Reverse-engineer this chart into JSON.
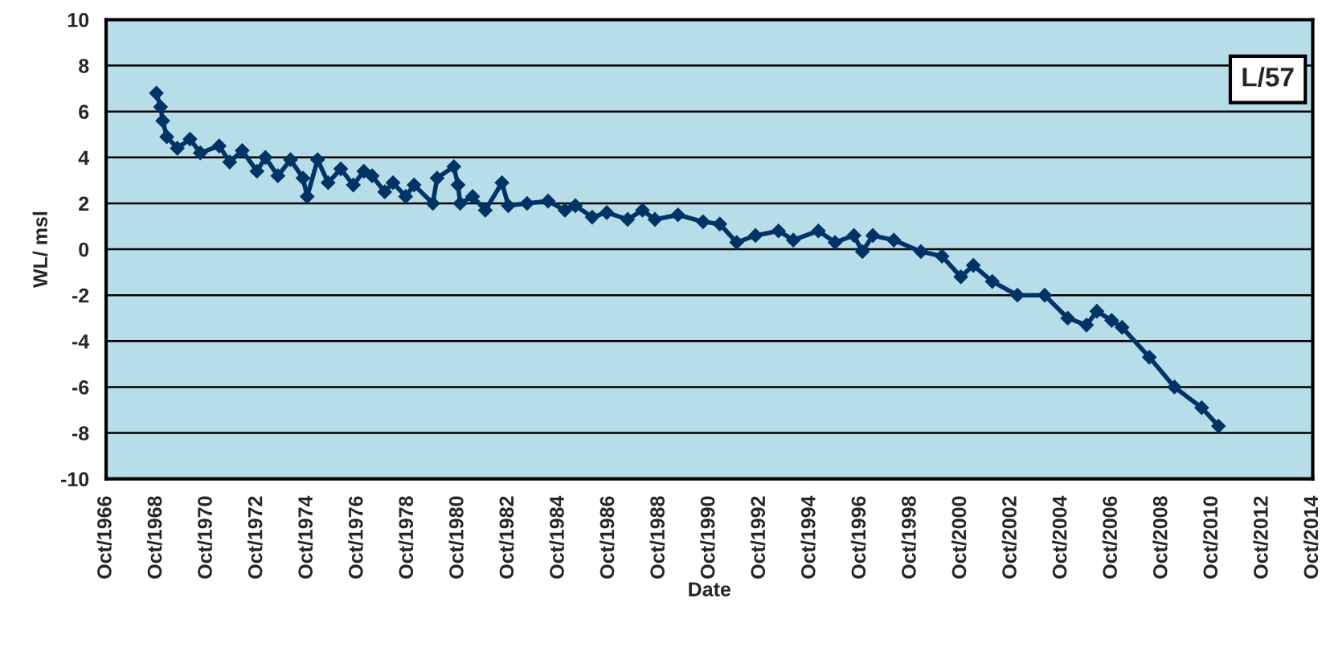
{
  "chart_data": {
    "type": "line",
    "xlabel": "Date",
    "ylabel": "WL/ msl",
    "x": [
      "1968-10",
      "1968-12",
      "1969-01",
      "1969-03",
      "1969-08",
      "1970-02",
      "1970-07",
      "1971-04",
      "1971-09",
      "1972-03",
      "1972-10",
      "1973-02",
      "1973-08",
      "1974-02",
      "1974-08",
      "1974-10",
      "1975-03",
      "1975-08",
      "1976-02",
      "1976-08",
      "1977-01",
      "1977-05",
      "1977-11",
      "1978-03",
      "1978-09",
      "1979-01",
      "1979-10",
      "1979-12",
      "1980-08",
      "1980-10",
      "1980-11",
      "1981-05",
      "1981-11",
      "1982-07",
      "1982-10",
      "1983-07",
      "1984-05",
      "1985-01",
      "1985-06",
      "1986-02",
      "1986-09",
      "1987-07",
      "1988-02",
      "1988-08",
      "1989-07",
      "1990-07",
      "1991-03",
      "1991-11",
      "1992-08",
      "1993-07",
      "1994-02",
      "1995-02",
      "1995-10",
      "1996-07",
      "1996-11",
      "1997-04",
      "1998-02",
      "1999-03",
      "2000-01",
      "2000-10",
      "2001-04",
      "2002-01",
      "2003-01",
      "2004-02",
      "2005-01",
      "2005-10",
      "2006-03",
      "2006-10",
      "2007-03",
      "2008-04",
      "2009-04",
      "2010-05",
      "2011-01"
    ],
    "series": [
      {
        "color": "#003366",
        "values": [
          6.8,
          6.2,
          5.6,
          4.9,
          4.4,
          4.8,
          4.2,
          4.5,
          3.8,
          4.3,
          3.4,
          4.0,
          3.2,
          3.9,
          3.1,
          2.3,
          3.9,
          2.9,
          3.5,
          2.8,
          3.4,
          3.2,
          2.5,
          2.9,
          2.3,
          2.8,
          2.0,
          3.1,
          3.6,
          2.8,
          2.0,
          2.3,
          1.7,
          2.9,
          1.9,
          2.0,
          2.1,
          1.7,
          1.9,
          1.4,
          1.6,
          1.3,
          1.7,
          1.3,
          1.5,
          1.2,
          1.1,
          0.3,
          0.6,
          0.8,
          0.4,
          0.8,
          0.3,
          0.6,
          -0.1,
          0.6,
          0.4,
          -0.1,
          -0.3,
          -1.2,
          -0.7,
          -1.4,
          -2.0,
          -2.0,
          -3.0,
          -3.3,
          -2.7,
          -3.1,
          -3.4,
          -4.7,
          -6.0,
          -6.9,
          -7.7
        ]
      }
    ],
    "xlim": [
      "1966-10",
      "2014-10"
    ],
    "xticks": [
      {
        "value": "1966-10",
        "label": "Oct/1966"
      },
      {
        "value": "1968-10",
        "label": "Oct/1968"
      },
      {
        "value": "1970-10",
        "label": "Oct/1970"
      },
      {
        "value": "1972-10",
        "label": "Oct/1972"
      },
      {
        "value": "1974-10",
        "label": "Oct/1974"
      },
      {
        "value": "1976-10",
        "label": "Oct/1976"
      },
      {
        "value": "1978-10",
        "label": "Oct/1978"
      },
      {
        "value": "1980-10",
        "label": "Oct/1980"
      },
      {
        "value": "1982-10",
        "label": "Oct/1982"
      },
      {
        "value": "1984-10",
        "label": "Oct/1984"
      },
      {
        "value": "1986-10",
        "label": "Oct/1986"
      },
      {
        "value": "1988-10",
        "label": "Oct/1988"
      },
      {
        "value": "1990-10",
        "label": "Oct/1990"
      },
      {
        "value": "1992-10",
        "label": "Oct/1992"
      },
      {
        "value": "1994-10",
        "label": "Oct/1994"
      },
      {
        "value": "1996-10",
        "label": "Oct/1996"
      },
      {
        "value": "1998-10",
        "label": "Oct/1998"
      },
      {
        "value": "2000-10",
        "label": "Oct/2000"
      },
      {
        "value": "2002-10",
        "label": "Oct/2002"
      },
      {
        "value": "2004-10",
        "label": "Oct/2004"
      },
      {
        "value": "2006-10",
        "label": "Oct/2006"
      },
      {
        "value": "2008-10",
        "label": "Oct/2008"
      },
      {
        "value": "2010-10",
        "label": "Oct/2010"
      },
      {
        "value": "2012-10",
        "label": "Oct/2012"
      },
      {
        "value": "2014-10",
        "label": "Oct/2014"
      }
    ],
    "ylim": [
      -10,
      10
    ],
    "yticks": [
      -10,
      -8,
      -6,
      -4,
      -2,
      0,
      2,
      4,
      6,
      8,
      10
    ],
    "grid": "y",
    "marker": "diamond",
    "line_style": "solid",
    "annotations": [
      "L/57"
    ]
  }
}
